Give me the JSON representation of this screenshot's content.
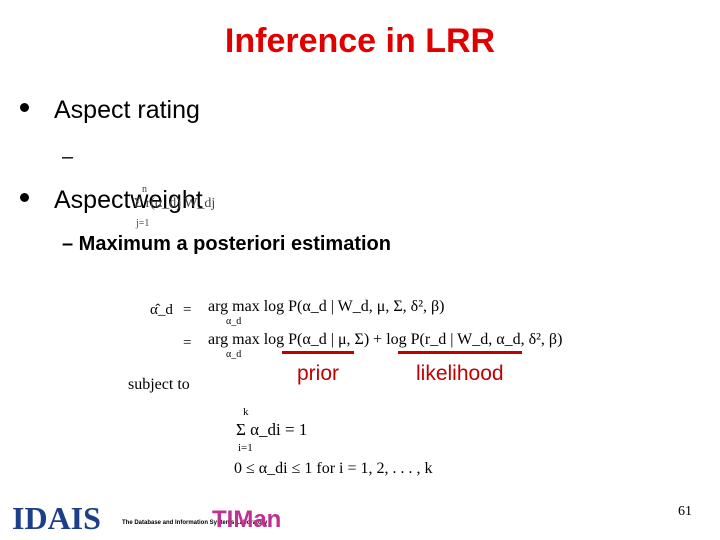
{
  "slide": {
    "title": "Inference in LRR",
    "bullets": [
      "Aspect rating",
      "Aspectweight"
    ],
    "dash": "–",
    "overlay_formula": "Σ r(α_d) W_dj",
    "overlay_limits": {
      "top": "n",
      "bottom": "j=1"
    },
    "sub_bullet": "– Maximum a posteriori estimation",
    "equations": {
      "lhs": "α̂_d",
      "eq1": "=",
      "line1": "arg max log P(α_d | W_d, μ, Σ, δ², β)",
      "eq2": "=",
      "line2": "arg max log P(α_d | μ, Σ) + log P(r_d | W_d, α_d, δ², β)",
      "under": "α_d",
      "prior": "prior",
      "likelihood": "likelihood",
      "subject_to": "subject to",
      "sum_top": "k",
      "sum_body": "Σ α_di = 1",
      "sum_bottom": "i=1",
      "range": "0 ≤ α_di ≤ 1 for i = 1, 2, . . . , k"
    },
    "footer": {
      "logo1": "IDAIS",
      "lab": "The Database and Information Systems Laboratory",
      "logo2": "TIMan",
      "page": "61"
    }
  }
}
